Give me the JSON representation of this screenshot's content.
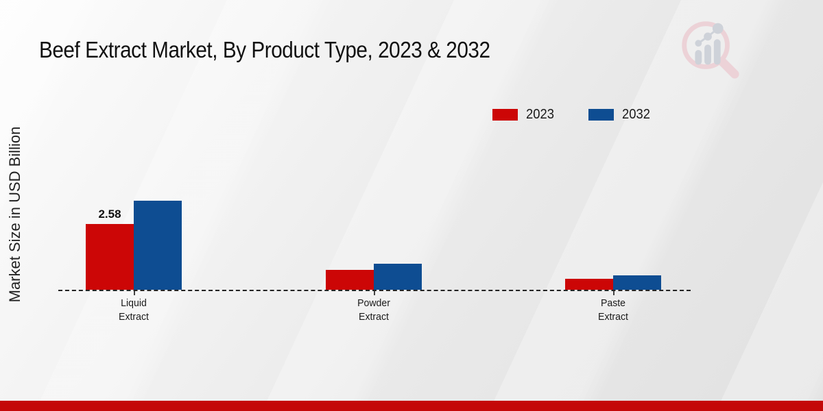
{
  "page": {
    "title": "Beef Extract Market, By Product Type, 2023 & 2032",
    "footer_bar_color": "#c40808"
  },
  "chart_data": {
    "type": "bar",
    "title": "Beef Extract Market, By Product Type, 2023 & 2032",
    "xlabel": "",
    "ylabel": "Market Size in USD Billion",
    "categories": [
      "Liquid Extract",
      "Powder Extract",
      "Paste Extract"
    ],
    "series": [
      {
        "name": "2023",
        "color": "#cc0606",
        "values": [
          2.58,
          0.78,
          0.44
        ]
      },
      {
        "name": "2032",
        "color": "#0e4d92",
        "values": [
          3.49,
          1.03,
          0.57
        ]
      }
    ],
    "ylim": [
      0,
      4
    ],
    "grid": false,
    "axis_line_style": "dashed",
    "legend_position": "top-right",
    "annotations": [
      {
        "series": 0,
        "category": 0,
        "text": "2.58"
      }
    ]
  },
  "logo": {
    "name": "magnifier-bar-chart-watermark",
    "ring_color": "#ecd2d7",
    "bars_color": "#ced2d9"
  }
}
